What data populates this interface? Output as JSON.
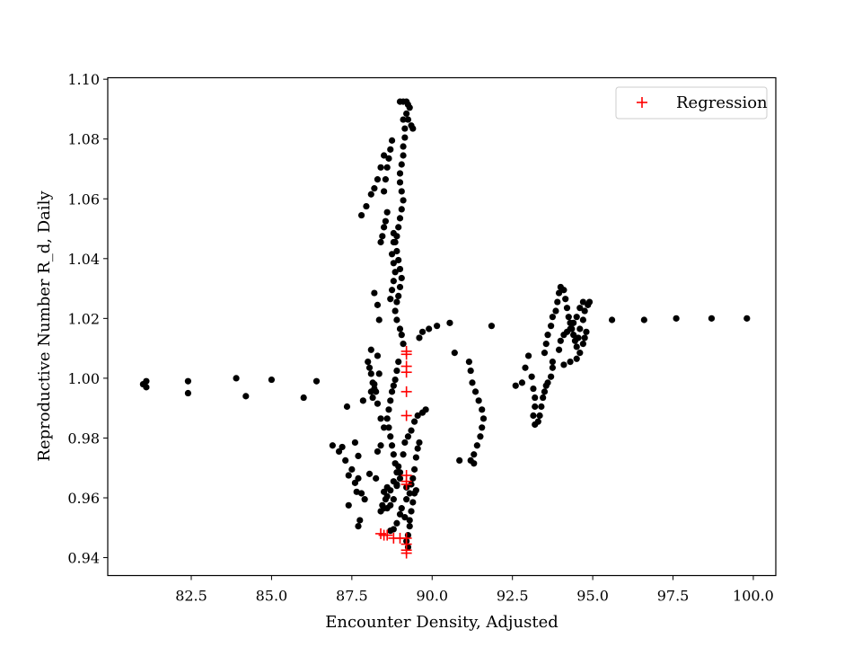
{
  "chart_data": {
    "type": "scatter",
    "xlabel": "Encounter Density, Adjusted",
    "ylabel": "Reproductive Number R_d, Daily",
    "xlim": [
      79.9,
      100.7
    ],
    "ylim": [
      0.934,
      1.1005
    ],
    "grid": false,
    "legend": {
      "position": "top-right",
      "entries": [
        "Regression"
      ]
    },
    "x_ticks": [
      {
        "value": 82.5,
        "label": "82.5"
      },
      {
        "value": 85.0,
        "label": "85.0"
      },
      {
        "value": 87.5,
        "label": "87.5"
      },
      {
        "value": 90.0,
        "label": "90.0"
      },
      {
        "value": 92.5,
        "label": "92.5"
      },
      {
        "value": 95.0,
        "label": "95.0"
      },
      {
        "value": 97.5,
        "label": "97.5"
      },
      {
        "value": 100.0,
        "label": "100.0"
      }
    ],
    "y_ticks": [
      {
        "value": 0.94,
        "label": "0.94"
      },
      {
        "value": 0.96,
        "label": "0.96"
      },
      {
        "value": 0.98,
        "label": "0.98"
      },
      {
        "value": 1.0,
        "label": "1.00"
      },
      {
        "value": 1.02,
        "label": "1.02"
      },
      {
        "value": 1.04,
        "label": "1.04"
      },
      {
        "value": 1.06,
        "label": "1.06"
      },
      {
        "value": 1.08,
        "label": "1.08"
      },
      {
        "value": 1.1,
        "label": "1.10"
      }
    ],
    "series": [
      {
        "marker": "circle",
        "color": "#000000",
        "points": [
          [
            81.0,
            0.998
          ],
          [
            81.1,
            0.999
          ],
          [
            81.1,
            0.997
          ],
          [
            82.4,
            0.999
          ],
          [
            82.4,
            0.995
          ],
          [
            83.9,
            1.0
          ],
          [
            84.2,
            0.994
          ],
          [
            85.0,
            0.9995
          ],
          [
            86.0,
            0.9935
          ],
          [
            86.4,
            0.999
          ],
          [
            86.9,
            0.9775
          ],
          [
            87.1,
            0.9755
          ],
          [
            87.3,
            0.9725
          ],
          [
            87.5,
            0.9695
          ],
          [
            87.6,
            0.9785
          ],
          [
            87.7,
            0.974
          ],
          [
            87.2,
            0.977
          ],
          [
            87.35,
            0.9905
          ],
          [
            87.4,
            0.9675
          ],
          [
            87.6,
            0.965
          ],
          [
            87.65,
            0.962
          ],
          [
            87.7,
            0.9665
          ],
          [
            87.8,
            0.9615
          ],
          [
            87.9,
            0.9595
          ],
          [
            87.85,
            0.9925
          ],
          [
            88.05,
            0.968
          ],
          [
            88.15,
            0.9935
          ],
          [
            88.1,
            0.9955
          ],
          [
            88.2,
            0.998
          ],
          [
            88.3,
            0.9915
          ],
          [
            88.4,
            0.9865
          ],
          [
            88.5,
            0.9835
          ],
          [
            88.4,
            0.9775
          ],
          [
            88.3,
            0.9755
          ],
          [
            88.25,
            0.9665
          ],
          [
            88.5,
            0.962
          ],
          [
            88.6,
            0.9605
          ],
          [
            88.7,
            0.9575
          ],
          [
            88.8,
            0.9595
          ],
          [
            88.9,
            0.964
          ],
          [
            88.95,
            0.9705
          ],
          [
            89.0,
            0.9685
          ],
          [
            89.1,
            0.9745
          ],
          [
            89.15,
            0.9785
          ],
          [
            89.2,
            0.9635
          ],
          [
            89.25,
            0.9805
          ],
          [
            89.35,
            0.9825
          ],
          [
            89.45,
            0.9855
          ],
          [
            89.55,
            0.9875
          ],
          [
            89.7,
            0.9885
          ],
          [
            89.8,
            0.9895
          ],
          [
            87.4,
            0.9575
          ],
          [
            87.7,
            0.9505
          ],
          [
            87.75,
            0.9525
          ],
          [
            88.7,
            0.949
          ],
          [
            88.8,
            0.9495
          ],
          [
            88.9,
            0.9515
          ],
          [
            89.0,
            0.9545
          ],
          [
            89.05,
            0.9565
          ],
          [
            89.15,
            0.9535
          ],
          [
            89.2,
            0.9595
          ],
          [
            89.3,
            0.9615
          ],
          [
            89.35,
            0.9645
          ],
          [
            89.4,
            0.9665
          ],
          [
            89.45,
            0.9695
          ],
          [
            89.5,
            0.9735
          ],
          [
            89.55,
            0.9765
          ],
          [
            89.6,
            0.9785
          ],
          [
            89.25,
            0.9435
          ],
          [
            89.2,
            0.9455
          ],
          [
            89.25,
            0.9475
          ],
          [
            89.3,
            0.9505
          ],
          [
            89.3,
            0.9525
          ],
          [
            89.35,
            0.9555
          ],
          [
            89.4,
            0.9585
          ],
          [
            89.45,
            0.9615
          ],
          [
            89.5,
            0.9625
          ],
          [
            88.4,
            0.9555
          ],
          [
            88.45,
            0.9575
          ],
          [
            88.55,
            0.9595
          ],
          [
            88.6,
            0.9635
          ],
          [
            88.7,
            0.9625
          ],
          [
            88.8,
            0.9655
          ],
          [
            88.9,
            0.9645
          ],
          [
            89.0,
            0.9665
          ],
          [
            88.5,
            0.9565
          ],
          [
            88.6,
            0.9565
          ],
          [
            88.0,
            1.0055
          ],
          [
            88.05,
            1.0035
          ],
          [
            88.1,
            1.0015
          ],
          [
            88.15,
            0.9985
          ],
          [
            88.2,
            0.9965
          ],
          [
            88.25,
            0.9955
          ],
          [
            88.3,
            1.0075
          ],
          [
            88.35,
            1.0015
          ],
          [
            88.1,
            1.0095
          ],
          [
            88.2,
            1.0285
          ],
          [
            88.3,
            1.0245
          ],
          [
            88.35,
            1.0195
          ],
          [
            88.4,
            1.0455
          ],
          [
            88.45,
            1.0475
          ],
          [
            88.5,
            1.0505
          ],
          [
            88.55,
            1.0525
          ],
          [
            88.6,
            1.0555
          ],
          [
            88.5,
            1.0625
          ],
          [
            88.55,
            1.0665
          ],
          [
            88.6,
            1.0705
          ],
          [
            88.65,
            1.0735
          ],
          [
            88.7,
            1.0765
          ],
          [
            88.75,
            1.0795
          ],
          [
            87.8,
            1.0545
          ],
          [
            87.95,
            1.0575
          ],
          [
            88.1,
            1.0615
          ],
          [
            88.2,
            1.0635
          ],
          [
            88.3,
            1.0665
          ],
          [
            88.4,
            1.0705
          ],
          [
            88.5,
            1.0745
          ],
          [
            88.8,
            1.0485
          ],
          [
            88.85,
            1.0455
          ],
          [
            88.9,
            1.0425
          ],
          [
            88.95,
            1.0395
          ],
          [
            89.0,
            1.0365
          ],
          [
            89.05,
            1.0335
          ],
          [
            89.0,
            1.0305
          ],
          [
            88.95,
            1.0275
          ],
          [
            88.9,
            1.0255
          ],
          [
            88.85,
            1.0225
          ],
          [
            88.9,
            1.0195
          ],
          [
            89.0,
            1.0165
          ],
          [
            89.05,
            1.0145
          ],
          [
            89.1,
            1.0115
          ],
          [
            88.95,
            1.0055
          ],
          [
            88.9,
            1.0025
          ],
          [
            88.85,
            0.9995
          ],
          [
            88.8,
            0.9975
          ],
          [
            88.75,
            0.9955
          ],
          [
            88.7,
            0.9925
          ],
          [
            88.65,
            0.9895
          ],
          [
            88.6,
            0.9865
          ],
          [
            88.65,
            0.9835
          ],
          [
            88.7,
            0.9805
          ],
          [
            88.75,
            0.9775
          ],
          [
            88.8,
            0.9745
          ],
          [
            88.85,
            0.9715
          ],
          [
            88.9,
            0.9685
          ],
          [
            88.7,
            1.0265
          ],
          [
            88.75,
            1.0295
          ],
          [
            88.8,
            1.0325
          ],
          [
            88.85,
            1.0355
          ],
          [
            88.8,
            1.0385
          ],
          [
            88.75,
            1.0415
          ],
          [
            88.8,
            1.0455
          ],
          [
            88.9,
            1.0475
          ],
          [
            88.95,
            1.0505
          ],
          [
            89.0,
            1.0535
          ],
          [
            89.05,
            1.0565
          ],
          [
            89.1,
            1.0595
          ],
          [
            89.05,
            1.0625
          ],
          [
            89.0,
            1.0655
          ],
          [
            89.0,
            1.0685
          ],
          [
            89.05,
            1.0715
          ],
          [
            89.1,
            1.0745
          ],
          [
            89.1,
            1.0775
          ],
          [
            89.15,
            1.0805
          ],
          [
            89.15,
            1.0835
          ],
          [
            89.1,
            1.0865
          ],
          [
            89.0,
            1.0925
          ],
          [
            89.1,
            1.0925
          ],
          [
            89.2,
            1.0925
          ],
          [
            89.25,
            1.0915
          ],
          [
            89.3,
            1.0905
          ],
          [
            89.2,
            1.0885
          ],
          [
            89.25,
            1.0865
          ],
          [
            89.4,
            1.0835
          ],
          [
            89.35,
            1.0845
          ],
          [
            89.6,
            1.0135
          ],
          [
            89.7,
            1.0155
          ],
          [
            89.9,
            1.0165
          ],
          [
            90.15,
            1.0175
          ],
          [
            90.55,
            1.0185
          ],
          [
            90.7,
            1.0085
          ],
          [
            91.15,
            1.0055
          ],
          [
            91.2,
            1.0025
          ],
          [
            91.25,
            0.9985
          ],
          [
            91.35,
            0.9955
          ],
          [
            91.45,
            0.9925
          ],
          [
            91.55,
            0.9895
          ],
          [
            91.6,
            0.9865
          ],
          [
            91.55,
            0.9835
          ],
          [
            91.5,
            0.9805
          ],
          [
            91.4,
            0.9775
          ],
          [
            91.3,
            0.9745
          ],
          [
            91.2,
            0.9725
          ],
          [
            91.3,
            0.9715
          ],
          [
            90.85,
            0.9725
          ],
          [
            91.85,
            1.0175
          ],
          [
            92.6,
            0.9975
          ],
          [
            92.8,
            0.9985
          ],
          [
            92.9,
            1.0035
          ],
          [
            93.0,
            1.0075
          ],
          [
            93.1,
            1.0005
          ],
          [
            93.15,
            0.9965
          ],
          [
            93.2,
            0.9935
          ],
          [
            93.2,
            0.9905
          ],
          [
            93.15,
            0.9875
          ],
          [
            93.2,
            0.9845
          ],
          [
            93.3,
            0.9855
          ],
          [
            93.35,
            0.9875
          ],
          [
            93.4,
            0.9905
          ],
          [
            93.45,
            0.9935
          ],
          [
            93.5,
            0.9955
          ],
          [
            93.55,
            0.9975
          ],
          [
            93.6,
            0.9985
          ],
          [
            93.7,
            1.0005
          ],
          [
            93.75,
            1.0035
          ],
          [
            93.75,
            1.0055
          ],
          [
            93.5,
            1.0085
          ],
          [
            93.55,
            1.0115
          ],
          [
            93.6,
            1.0145
          ],
          [
            93.7,
            1.0175
          ],
          [
            93.75,
            1.0205
          ],
          [
            93.85,
            1.0225
          ],
          [
            93.9,
            1.0255
          ],
          [
            93.95,
            1.0285
          ],
          [
            94.0,
            1.0305
          ],
          [
            94.1,
            1.0295
          ],
          [
            94.15,
            1.0265
          ],
          [
            94.2,
            1.0235
          ],
          [
            94.25,
            1.0205
          ],
          [
            94.3,
            1.0185
          ],
          [
            94.35,
            1.0165
          ],
          [
            94.4,
            1.0145
          ],
          [
            94.45,
            1.0125
          ],
          [
            94.5,
            1.0105
          ],
          [
            94.55,
            1.0135
          ],
          [
            94.6,
            1.0165
          ],
          [
            94.7,
            1.0195
          ],
          [
            94.75,
            1.0225
          ],
          [
            94.85,
            1.0245
          ],
          [
            94.9,
            1.0255
          ],
          [
            94.7,
            1.0255
          ],
          [
            94.6,
            1.0235
          ],
          [
            94.5,
            1.0205
          ],
          [
            94.4,
            1.0185
          ],
          [
            94.3,
            1.0165
          ],
          [
            94.2,
            1.0155
          ],
          [
            94.1,
            1.0145
          ],
          [
            94.0,
            1.0125
          ],
          [
            93.95,
            1.0095
          ],
          [
            94.1,
            1.0045
          ],
          [
            94.3,
            1.0055
          ],
          [
            94.5,
            1.0065
          ],
          [
            94.6,
            1.0085
          ],
          [
            94.7,
            1.0115
          ],
          [
            94.75,
            1.0135
          ],
          [
            94.8,
            1.0155
          ],
          [
            95.6,
            1.0195
          ],
          [
            96.6,
            1.0195
          ],
          [
            97.6,
            1.02
          ],
          [
            98.7,
            1.02
          ],
          [
            99.8,
            1.02
          ]
        ]
      },
      {
        "name": "Regression",
        "marker": "plus",
        "color": "#ff0000",
        "points": [
          [
            89.2,
            1.009
          ],
          [
            89.2,
            1.008
          ],
          [
            89.2,
            1.004
          ],
          [
            89.2,
            1.002
          ],
          [
            89.2,
            0.9955
          ],
          [
            89.2,
            0.9875
          ],
          [
            89.2,
            0.9675
          ],
          [
            89.2,
            0.9655
          ],
          [
            89.2,
            0.9645
          ],
          [
            89.2,
            0.9465
          ],
          [
            89.2,
            0.9445
          ],
          [
            89.2,
            0.9425
          ],
          [
            89.2,
            0.9415
          ],
          [
            89.0,
            0.9465
          ],
          [
            88.8,
            0.9465
          ],
          [
            88.6,
            0.9475
          ],
          [
            88.5,
            0.9475
          ],
          [
            88.4,
            0.948
          ]
        ]
      }
    ]
  }
}
